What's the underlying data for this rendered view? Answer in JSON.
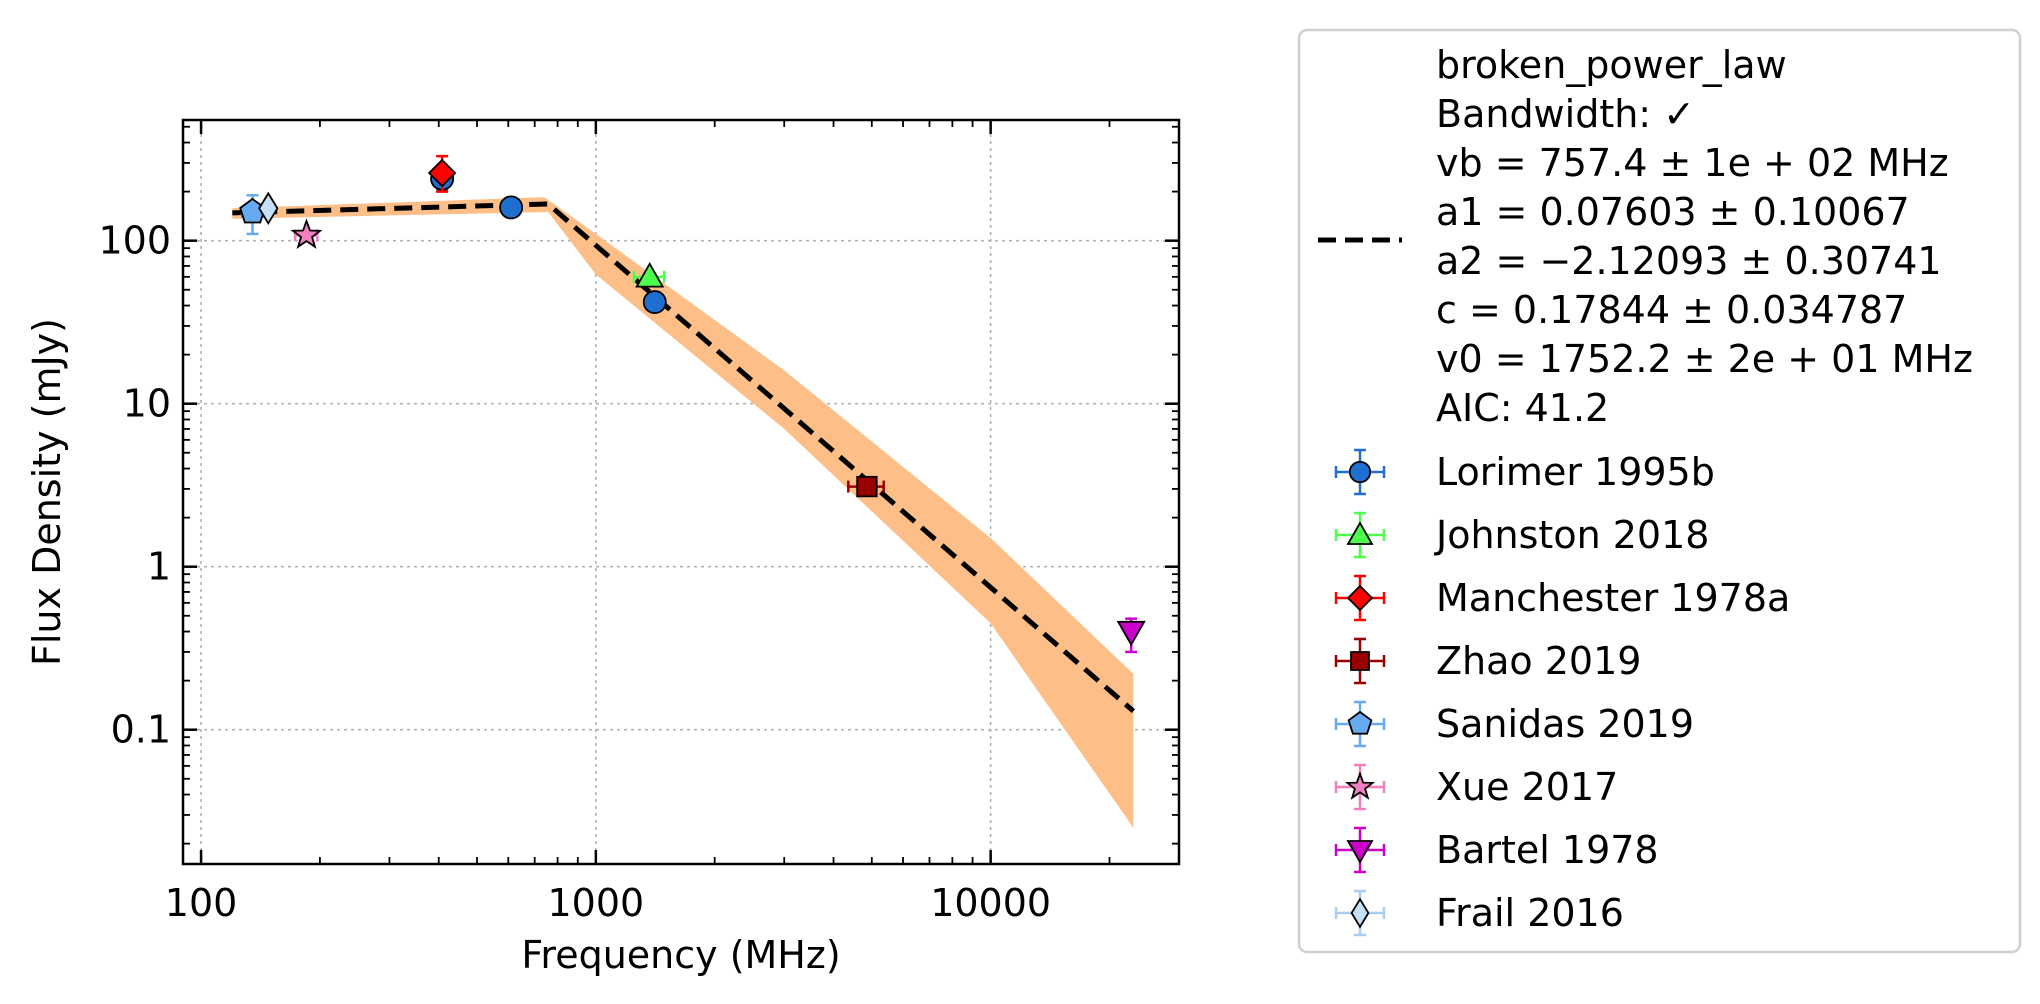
{
  "chart_data": {
    "type": "scatter",
    "xlabel": "Frequency (MHz)",
    "ylabel": "Flux Density (mJy)",
    "x_scale": "log",
    "y_scale": "log",
    "xlim": [
      90,
      30000
    ],
    "ylim": [
      0.015,
      550
    ],
    "grid": true,
    "legend_position": "outside-right",
    "x_ticks": [
      {
        "value": 100,
        "label": "100"
      },
      {
        "value": 1000,
        "label": "1000"
      },
      {
        "value": 10000,
        "label": "10000"
      }
    ],
    "y_ticks": [
      {
        "value": 0.1,
        "label": "0.1"
      },
      {
        "value": 1,
        "label": "1"
      },
      {
        "value": 10,
        "label": "10"
      },
      {
        "value": 100,
        "label": "100"
      }
    ],
    "model": {
      "legend_lines": [
        "broken_power_law",
        "Bandwidth: ✓",
        "vb = 757.4 ± 1e + 02 MHz",
        "a1 = 0.07603 ± 0.10067",
        "a2 = −2.12093 ± 0.30741",
        "c = 0.17844 ± 0.034787",
        "v0 = 1752.2 ± 2e + 01 MHz",
        "AIC: 41.2"
      ],
      "color": "#000000",
      "band_color": "#fdbf87",
      "line_points": [
        [
          120,
          148
        ],
        [
          757,
          168
        ],
        [
          23000,
          0.13
        ]
      ],
      "band_upper": [
        [
          120,
          158
        ],
        [
          740,
          185
        ],
        [
          1000,
          110
        ],
        [
          3000,
          16
        ],
        [
          10000,
          1.5
        ],
        [
          23000,
          0.22
        ]
      ],
      "band_lower": [
        [
          120,
          136
        ],
        [
          757,
          150
        ],
        [
          1000,
          62
        ],
        [
          3000,
          7
        ],
        [
          10000,
          0.45
        ],
        [
          23000,
          0.025
        ]
      ]
    },
    "series": [
      {
        "name": "Lorimer 1995b",
        "marker": "circle",
        "color": "#1f6fd1",
        "ecolor": "#1f6fd1",
        "points": [
          {
            "x": 408,
            "y": 240,
            "yerr": [
              35,
              35
            ]
          },
          {
            "x": 610,
            "y": 160
          },
          {
            "x": 1410,
            "y": 42
          }
        ]
      },
      {
        "name": "Johnston 2018",
        "marker": "triangle-up",
        "color": "#4dff4d",
        "ecolor": "#4dff4d",
        "points": [
          {
            "x": 1369,
            "y": 60,
            "xerr": [
              120,
              120
            ]
          }
        ]
      },
      {
        "name": "Manchester 1978a",
        "marker": "diamond",
        "color": "#ff0000",
        "ecolor": "#ff0000",
        "points": [
          {
            "x": 408,
            "y": 260,
            "yerr": [
              60,
              70
            ]
          }
        ]
      },
      {
        "name": "Zhao 2019",
        "marker": "square",
        "color": "#990000",
        "ecolor": "#990000",
        "points": [
          {
            "x": 4860,
            "y": 3.1,
            "xerr": [
              500,
              500
            ],
            "yerr": [
              0.3,
              0.3
            ]
          }
        ]
      },
      {
        "name": "Sanidas 2019",
        "marker": "pentagon",
        "color": "#66aaf0",
        "ecolor": "#66aaf0",
        "points": [
          {
            "x": 135,
            "y": 150,
            "xerr": [
              8,
              8
            ],
            "yerr": [
              40,
              40
            ]
          }
        ]
      },
      {
        "name": "Xue 2017",
        "marker": "star",
        "color": "#f080c0",
        "ecolor": "#f080c0",
        "points": [
          {
            "x": 185,
            "y": 108,
            "xerr": [
              12,
              12
            ]
          }
        ]
      },
      {
        "name": "Bartel 1978",
        "marker": "triangle-down",
        "color": "#cc00cc",
        "ecolor": "#cc00cc",
        "points": [
          {
            "x": 22700,
            "y": 0.4,
            "yerr": [
              0.1,
              0.08
            ]
          }
        ]
      },
      {
        "name": "Frail 2016",
        "marker": "thin-diamond",
        "color": "#c6e0f8",
        "ecolor": "#a8cdf0",
        "points": [
          {
            "x": 148,
            "y": 158
          }
        ]
      }
    ]
  }
}
